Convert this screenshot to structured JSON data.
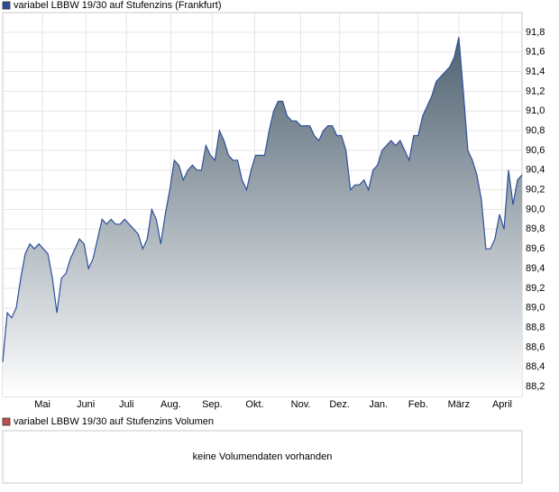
{
  "chart_data": {
    "type": "area",
    "title": "variabel LBBW 19/30 auf Stufenzins (Frankfurt)",
    "color": "#2d4f9a",
    "values": [
      88.45,
      88.95,
      88.9,
      89.0,
      89.3,
      89.55,
      89.65,
      89.6,
      89.65,
      89.6,
      89.55,
      89.3,
      88.95,
      89.3,
      89.35,
      89.5,
      89.6,
      89.7,
      89.65,
      89.4,
      89.5,
      89.7,
      89.9,
      89.85,
      89.9,
      89.85,
      89.85,
      89.9,
      89.85,
      89.8,
      89.75,
      89.6,
      89.7,
      90.0,
      89.9,
      89.65,
      89.95,
      90.2,
      90.5,
      90.45,
      90.3,
      90.4,
      90.45,
      90.4,
      90.4,
      90.65,
      90.55,
      90.5,
      90.8,
      90.7,
      90.55,
      90.5,
      90.5,
      90.3,
      90.2,
      90.4,
      90.55,
      90.55,
      90.55,
      90.8,
      91.0,
      91.1,
      91.1,
      90.95,
      90.9,
      90.9,
      90.85,
      90.85,
      90.85,
      90.75,
      90.7,
      90.8,
      90.85,
      90.85,
      90.75,
      90.75,
      90.6,
      90.2,
      90.25,
      90.25,
      90.3,
      90.2,
      90.4,
      90.45,
      90.6,
      90.65,
      90.7,
      90.65,
      90.7,
      90.6,
      90.5,
      90.75,
      90.75,
      90.95,
      91.05,
      91.15,
      91.3,
      91.35,
      91.4,
      91.45,
      91.55,
      91.75,
      91.2,
      90.6,
      90.5,
      90.35,
      90.1,
      89.6,
      89.6,
      89.7,
      89.95,
      89.8,
      90.4,
      90.05,
      90.3,
      90.35
    ],
    "xlim": [
      0,
      115
    ],
    "xticks": [
      {
        "value": 8.8,
        "label": "Mai"
      },
      {
        "value": 18.4,
        "label": "Juni"
      },
      {
        "value": 27.4,
        "label": "Juli"
      },
      {
        "value": 37.2,
        "label": "Aug."
      },
      {
        "value": 46.4,
        "label": "Sep."
      },
      {
        "value": 55.8,
        "label": "Okt."
      },
      {
        "value": 66,
        "label": "Nov."
      },
      {
        "value": 74.6,
        "label": "Dez."
      },
      {
        "value": 83.2,
        "label": "Jan."
      },
      {
        "value": 92,
        "label": "Feb."
      },
      {
        "value": 101,
        "label": "März"
      },
      {
        "value": 110.6,
        "label": "April"
      }
    ],
    "ylim": [
      88.1,
      92.0
    ],
    "yticks": [
      {
        "value": 88.2,
        "label": "88,2"
      },
      {
        "value": 88.4,
        "label": "88,4"
      },
      {
        "value": 88.6,
        "label": "88,6"
      },
      {
        "value": 88.8,
        "label": "88,8"
      },
      {
        "value": 89.0,
        "label": "89,0"
      },
      {
        "value": 89.2,
        "label": "89,2"
      },
      {
        "value": 89.4,
        "label": "89,4"
      },
      {
        "value": 89.6,
        "label": "89,6"
      },
      {
        "value": 89.8,
        "label": "89,8"
      },
      {
        "value": 90.0,
        "label": "90,0"
      },
      {
        "value": 90.2,
        "label": "90,2"
      },
      {
        "value": 90.4,
        "label": "90,4"
      },
      {
        "value": 90.6,
        "label": "90,6"
      },
      {
        "value": 90.8,
        "label": "90,8"
      },
      {
        "value": 91.0,
        "label": "91,0"
      },
      {
        "value": 91.2,
        "label": "91,2"
      },
      {
        "value": 91.4,
        "label": "91,4"
      },
      {
        "value": 91.6,
        "label": "91,6"
      },
      {
        "value": 91.8,
        "label": "91,8"
      }
    ],
    "grid": true,
    "volume_title": "variabel LBBW 19/30 auf Stufenzins Volumen",
    "volume_color": "#c0504d",
    "volume_note": "keine Volumendaten vorhanden"
  }
}
